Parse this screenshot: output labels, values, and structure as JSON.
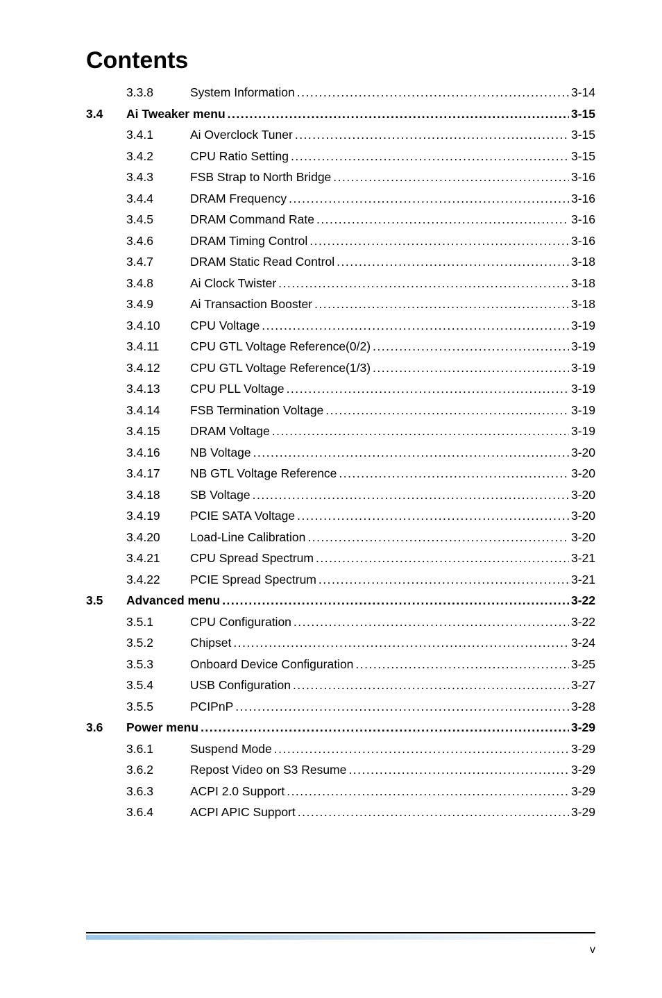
{
  "title": "Contents",
  "entries": [
    {
      "section": "",
      "num": "3.3.8",
      "label": "System Information",
      "page": "3-14",
      "bold": false,
      "dot": "dense"
    },
    {
      "section": "3.4",
      "num": "",
      "label": "Ai Tweaker menu",
      "page": "3-15",
      "bold": true,
      "dot": "dense"
    },
    {
      "section": "",
      "num": "3.4.1",
      "label": "Ai Overclock Tuner ",
      "page": "3-15",
      "bold": false,
      "dot": "dense"
    },
    {
      "section": "",
      "num": "3.4.2",
      "label": "CPU Ratio Setting ",
      "page": "3-15",
      "bold": false,
      "dot": "dense"
    },
    {
      "section": "",
      "num": "3.4.3",
      "label": "FSB Strap to North Bridge ",
      "page": "3-16",
      "bold": false,
      "dot": "dense"
    },
    {
      "section": "",
      "num": "3.4.4",
      "label": "DRAM Frequency ",
      "page": "3-16",
      "bold": false,
      "dot": "dense"
    },
    {
      "section": "",
      "num": "3.4.5",
      "label": "DRAM Command Rate ",
      "page": "3-16",
      "bold": false,
      "dot": "dense"
    },
    {
      "section": "",
      "num": "3.4.6",
      "label": "DRAM Timing Control ",
      "page": "3-16",
      "bold": false,
      "dot": "dense"
    },
    {
      "section": "",
      "num": "3.4.7",
      "label": "DRAM Static Read Control ",
      "page": "3-18",
      "bold": false,
      "dot": "dense"
    },
    {
      "section": "",
      "num": "3.4.8",
      "label": "Ai Clock Twister ",
      "page": "3-18",
      "bold": false,
      "dot": "dense"
    },
    {
      "section": "",
      "num": "3.4.9",
      "label": "Ai Transaction Booster ",
      "page": "3-18",
      "bold": false,
      "dot": "dense"
    },
    {
      "section": "",
      "num": "3.4.10",
      "label": "CPU Voltage  ",
      "page": "3-19",
      "bold": false,
      "dot": "dense"
    },
    {
      "section": "",
      "num": "3.4.11",
      "label": "CPU GTL Voltage Reference(0/2) ",
      "page": "3-19",
      "bold": false,
      "dot": "dense"
    },
    {
      "section": "",
      "num": "3.4.12",
      "label": "CPU GTL Voltage Reference(1/3) ",
      "page": "3-19",
      "bold": false,
      "dot": "dense"
    },
    {
      "section": "",
      "num": "3.4.13",
      "label": "CPU PLL Voltage ",
      "page": "3-19",
      "bold": false,
      "dot": "dense"
    },
    {
      "section": "",
      "num": "3.4.14",
      "label": "FSB Termination Voltage ",
      "page": "3-19",
      "bold": false,
      "dot": "dense"
    },
    {
      "section": "",
      "num": "3.4.15",
      "label": "DRAM Voltage ",
      "page": "3-19",
      "bold": false,
      "dot": "dense"
    },
    {
      "section": "",
      "num": "3.4.16",
      "label": "NB Voltage ",
      "page": "3-20",
      "bold": false,
      "dot": "dense"
    },
    {
      "section": "",
      "num": "3.4.17",
      "label": "NB GTL Voltage Reference ",
      "page": "3-20",
      "bold": false,
      "dot": "dense"
    },
    {
      "section": "",
      "num": "3.4.18",
      "label": "SB Voltage ",
      "page": "3-20",
      "bold": false,
      "dot": "dense"
    },
    {
      "section": "",
      "num": "3.4.19",
      "label": "PCIE SATA Voltage ",
      "page": "3-20",
      "bold": false,
      "dot": "dense"
    },
    {
      "section": "",
      "num": "3.4.20",
      "label": "Load-Line Calibration ",
      "page": "3-20",
      "bold": false,
      "dot": "dense"
    },
    {
      "section": "",
      "num": "3.4.21",
      "label": "CPU Spread Spectrum ",
      "page": "3-21",
      "bold": false,
      "dot": "dense"
    },
    {
      "section": "",
      "num": "3.4.22",
      "label": "PCIE Spread Spectrum ",
      "page": "3-21",
      "bold": false,
      "dot": "dense"
    },
    {
      "section": "3.5",
      "num": "",
      "label": "Advanced menu ",
      "page": "3-22",
      "bold": true,
      "dot": "dense"
    },
    {
      "section": "",
      "num": "3.5.1",
      "label": "CPU Configuration",
      "page": "3-22",
      "bold": false,
      "dot": "dense"
    },
    {
      "section": "",
      "num": "3.5.2",
      "label": "Chipset",
      "page": "3-24",
      "bold": false,
      "dot": "dense"
    },
    {
      "section": "",
      "num": "3.5.3",
      "label": "Onboard Device Configuration",
      "page": "3-25",
      "bold": false,
      "dot": "dense"
    },
    {
      "section": "",
      "num": "3.5.4",
      "label": "USB Configuration",
      "page": "3-27",
      "bold": false,
      "dot": "dense"
    },
    {
      "section": "",
      "num": "3.5.5",
      "label": "PCIPnP",
      "page": "3-28",
      "bold": false,
      "dot": "dense"
    },
    {
      "section": "3.6",
      "num": "",
      "label": "Power menu",
      "page": "3-29",
      "bold": true,
      "dot": "dense"
    },
    {
      "section": "",
      "num": "3.6.1",
      "label": "Suspend Mode ",
      "page": "3-29",
      "bold": false,
      "dot": "dense"
    },
    {
      "section": "",
      "num": "3.6.2",
      "label": "Repost Video on S3 Resume",
      "page": "3-29",
      "bold": false,
      "dot": "dense"
    },
    {
      "section": "",
      "num": "3.6.3",
      "label": "ACPI 2.0 Support",
      "page": "3-29",
      "bold": false,
      "dot": "dense"
    },
    {
      "section": "",
      "num": "3.6.4",
      "label": "ACPI APIC Support",
      "page": "3-29",
      "bold": false,
      "dot": "dense"
    }
  ],
  "page_number": "v"
}
